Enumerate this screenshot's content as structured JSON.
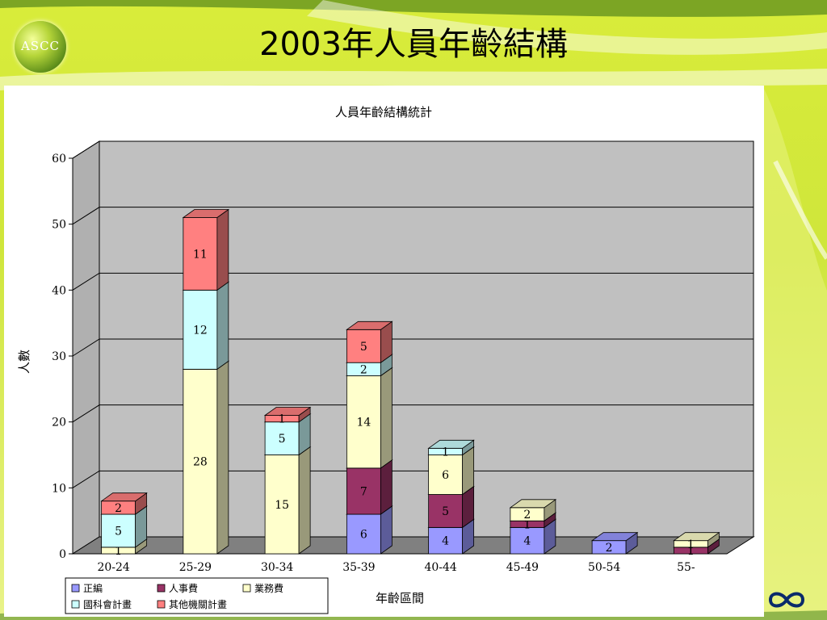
{
  "slide": {
    "title": "2003年人員年齡結構",
    "logo_text": "ASCC"
  },
  "chart_data": {
    "type": "bar",
    "stacked": true,
    "three_d": true,
    "title": "人員年齡結構統計",
    "xlabel": "年齡區間",
    "ylabel": "人數",
    "ylim": [
      0,
      60
    ],
    "yticks": [
      0,
      10,
      20,
      30,
      40,
      50,
      60
    ],
    "grid": true,
    "legend_position": "bottom-left",
    "categories": [
      "20-24",
      "25-29",
      "30-34",
      "35-39",
      "40-44",
      "45-49",
      "50-54",
      "55-"
    ],
    "series": [
      {
        "name": "正編",
        "color": "#9999ff",
        "values": [
          0,
          0,
          0,
          6,
          4,
          4,
          2,
          0
        ]
      },
      {
        "name": "人事費",
        "color": "#993366",
        "values": [
          0,
          0,
          0,
          7,
          5,
          1,
          0,
          1
        ]
      },
      {
        "name": "業務費",
        "color": "#ffffcc",
        "values": [
          1,
          28,
          15,
          14,
          6,
          2,
          0,
          1
        ]
      },
      {
        "name": "國科會計畫",
        "color": "#ccffff",
        "values": [
          5,
          12,
          5,
          2,
          1,
          0,
          0,
          0
        ]
      },
      {
        "name": "其他機關計畫",
        "color": "#ff8080",
        "values": [
          2,
          11,
          1,
          5,
          0,
          0,
          0,
          0
        ]
      }
    ]
  }
}
